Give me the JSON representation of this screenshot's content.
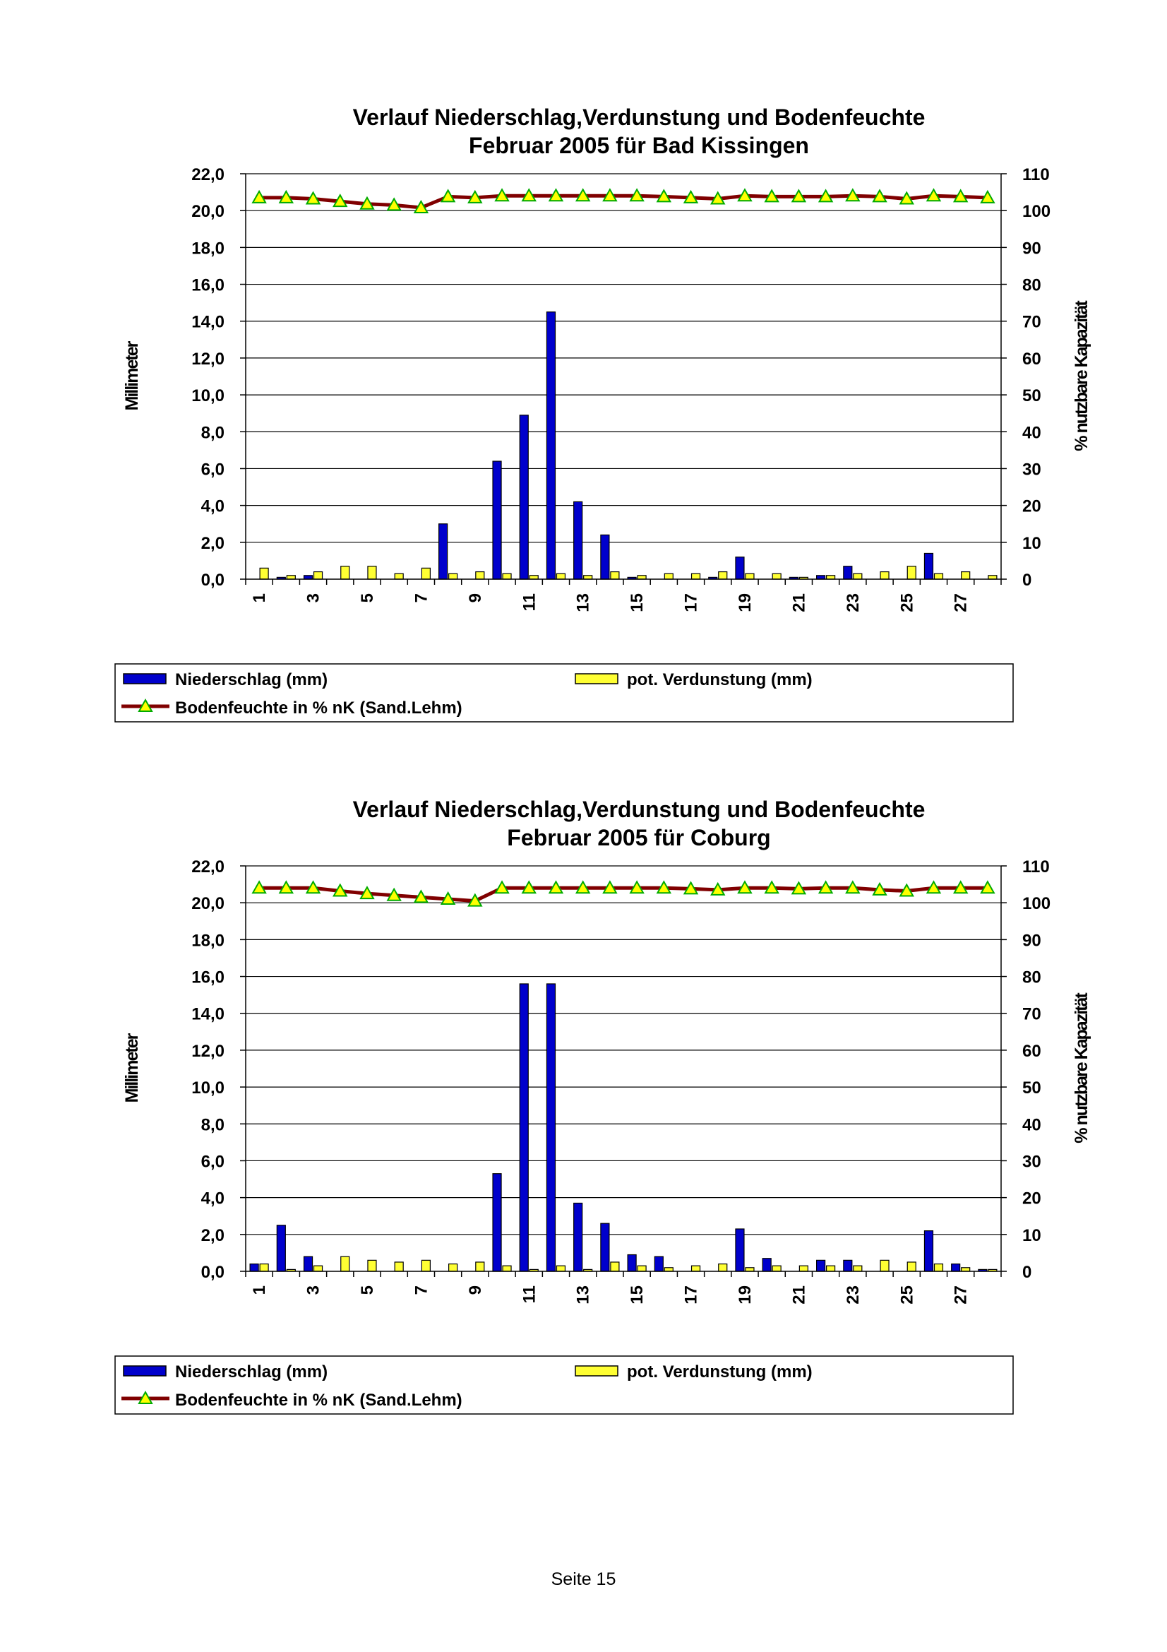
{
  "page": {
    "footer": "Seite 15"
  },
  "colors": {
    "precip": "#0000cc",
    "evap": "#ffff33",
    "soil_line": "#800000",
    "soil_marker": "#ffff00",
    "marker_edge": "#00aa00"
  },
  "chart_data": [
    {
      "type": "bar",
      "title_line1": "Verlauf Niederschlag,Verdunstung und Bodenfeuchte",
      "title_line2": "Februar  2005 für Bad Kissingen",
      "ylabel": "Millimeter",
      "y2label": "% nutzbare Kapazität",
      "ylim": [
        0,
        22
      ],
      "y2lim": [
        0,
        110
      ],
      "yticks": [
        "0,0",
        "2,0",
        "4,0",
        "6,0",
        "8,0",
        "10,0",
        "12,0",
        "14,0",
        "16,0",
        "18,0",
        "20,0",
        "22,0"
      ],
      "y2ticks": [
        "0",
        "10",
        "20",
        "30",
        "40",
        "50",
        "60",
        "70",
        "80",
        "90",
        "100",
        "110"
      ],
      "xtick_labels": [
        "1",
        "3",
        "5",
        "7",
        "9",
        "11",
        "13",
        "15",
        "17",
        "19",
        "21",
        "23",
        "25",
        "27"
      ],
      "days": [
        1,
        2,
        3,
        4,
        5,
        6,
        7,
        8,
        9,
        10,
        11,
        12,
        13,
        14,
        15,
        16,
        17,
        18,
        19,
        20,
        21,
        22,
        23,
        24,
        25,
        26,
        27,
        28
      ],
      "series": [
        {
          "name": "Niederschlag (mm)",
          "axis": "left",
          "values": [
            0,
            0.1,
            0.2,
            0,
            0,
            0,
            0,
            3.0,
            0,
            6.4,
            8.9,
            14.5,
            4.2,
            2.4,
            0.1,
            0,
            0,
            0.1,
            1.2,
            0,
            0.1,
            0.2,
            0.7,
            0,
            0,
            1.4,
            0,
            0
          ]
        },
        {
          "name": "pot. Verdunstung (mm)",
          "axis": "left",
          "values": [
            0.6,
            0.2,
            0.4,
            0.7,
            0.7,
            0.3,
            0.6,
            0.3,
            0.4,
            0.3,
            0.2,
            0.3,
            0.2,
            0.4,
            0.2,
            0.3,
            0.3,
            0.4,
            0.3,
            0.3,
            0.1,
            0.2,
            0.3,
            0.4,
            0.7,
            0.3,
            0.4,
            0.2
          ]
        },
        {
          "name": "Bodenfeuchte in % nK (Sand.Lehm)",
          "axis": "right",
          "values": [
            103.5,
            103.5,
            103.2,
            102.5,
            101.8,
            101.5,
            100.8,
            103.8,
            103.5,
            104.0,
            104.0,
            104.0,
            104.0,
            104.0,
            104.0,
            103.8,
            103.5,
            103.2,
            104.0,
            103.8,
            103.8,
            103.8,
            104.0,
            103.8,
            103.2,
            104.0,
            103.8,
            103.5
          ]
        }
      ],
      "legend": {
        "precip": "Niederschlag (mm)",
        "evap": "pot. Verdunstung (mm)",
        "soil": "Bodenfeuchte in % nK (Sand.Lehm)"
      }
    },
    {
      "type": "bar",
      "title_line1": "Verlauf Niederschlag,Verdunstung und Bodenfeuchte",
      "title_line2": "Februar 2005 für Coburg",
      "ylabel": "Millimeter",
      "y2label": "% nutzbare Kapazität",
      "ylim": [
        0,
        22
      ],
      "y2lim": [
        0,
        110
      ],
      "yticks": [
        "0,0",
        "2,0",
        "4,0",
        "6,0",
        "8,0",
        "10,0",
        "12,0",
        "14,0",
        "16,0",
        "18,0",
        "20,0",
        "22,0"
      ],
      "y2ticks": [
        "0",
        "10",
        "20",
        "30",
        "40",
        "50",
        "60",
        "70",
        "80",
        "90",
        "100",
        "110"
      ],
      "xtick_labels": [
        "1",
        "3",
        "5",
        "7",
        "9",
        "11",
        "13",
        "15",
        "17",
        "19",
        "21",
        "23",
        "25",
        "27"
      ],
      "days": [
        1,
        2,
        3,
        4,
        5,
        6,
        7,
        8,
        9,
        10,
        11,
        12,
        13,
        14,
        15,
        16,
        17,
        18,
        19,
        20,
        21,
        22,
        23,
        24,
        25,
        26,
        27,
        28
      ],
      "series": [
        {
          "name": "Niederschlag (mm)",
          "axis": "left",
          "values": [
            0.4,
            2.5,
            0.8,
            0,
            0,
            0,
            0,
            0,
            0,
            5.3,
            15.6,
            15.6,
            3.7,
            2.6,
            0.9,
            0.8,
            0,
            0,
            2.3,
            0.7,
            0,
            0.6,
            0.6,
            0,
            0,
            2.2,
            0.4,
            0.1
          ]
        },
        {
          "name": "pot. Verdunstung (mm)",
          "axis": "left",
          "values": [
            0.4,
            0.1,
            0.3,
            0.8,
            0.6,
            0.5,
            0.6,
            0.4,
            0.5,
            0.3,
            0.1,
            0.3,
            0.1,
            0.5,
            0.3,
            0.2,
            0.3,
            0.4,
            0.2,
            0.3,
            0.3,
            0.3,
            0.3,
            0.6,
            0.5,
            0.4,
            0.2,
            0.1
          ]
        },
        {
          "name": "Bodenfeuchte in % nK (Sand.Lehm)",
          "axis": "right",
          "values": [
            104.0,
            104.0,
            104.0,
            103.2,
            102.5,
            102.0,
            101.5,
            101.0,
            100.5,
            104.0,
            104.0,
            104.0,
            104.0,
            104.0,
            104.0,
            104.0,
            103.8,
            103.5,
            104.0,
            104.0,
            103.8,
            104.0,
            104.0,
            103.5,
            103.2,
            104.0,
            104.0,
            104.0
          ]
        }
      ],
      "legend": {
        "precip": "Niederschlag (mm)",
        "evap": "pot. Verdunstung (mm)",
        "soil": "Bodenfeuchte in % nK (Sand.Lehm)"
      }
    }
  ]
}
